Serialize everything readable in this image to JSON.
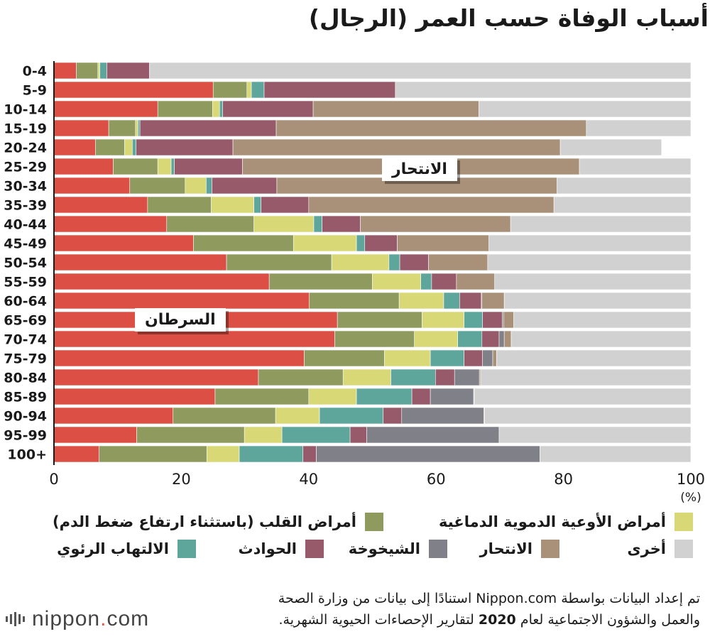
{
  "title": "أسباب الوفاة حسب العمر (الرجال)",
  "colors": {
    "cancer": "#db4f44",
    "heart": "#8f9a5e",
    "cerebro": "#d8d877",
    "pneumonia": "#5ea59c",
    "accident": "#965a6a",
    "senility": "#808089",
    "suicide": "#a89178",
    "other": "#d1d1d1"
  },
  "callouts": {
    "cancer": "السرطان",
    "suicide": "الانتحار"
  },
  "legend": [
    {
      "key": "cerebro",
      "label": "أمراض الأوعية الدموية الدماغية"
    },
    {
      "key": "heart",
      "label": "أمراض القلب (باستثناء ارتفاع ضغط الدم)"
    },
    {
      "key": "other",
      "label": "أخرى"
    },
    {
      "key": "suicide",
      "label": "الانتحار"
    },
    {
      "key": "senility",
      "label": "الشيخوخة"
    },
    {
      "key": "accident",
      "label": "الحوادث"
    },
    {
      "key": "pneumonia",
      "label": "الالتهاب الرئوي"
    }
  ],
  "source": {
    "line1_prefix": "تم إعداد البيانات بواسطة",
    "brand": "Nippon.com",
    "line1_suffix": "استنادًا إلى بيانات من وزارة الصحة",
    "line2_prefix": "والعمل والشؤون الاجتماعية لعام",
    "year": "2020",
    "line2_suffix": "لتقارير الإحصاءات الحيوية الشهرية."
  },
  "logo": {
    "name": "nippon",
    "dot": ".",
    "tld": "com"
  },
  "chart_data": {
    "type": "bar",
    "orientation": "horizontal",
    "stacked": true,
    "title": "أسباب الوفاة حسب العمر (الرجال)",
    "unit_label": "(%)",
    "xlim": [
      0,
      100
    ],
    "xticks": [
      0,
      20,
      40,
      60,
      80,
      100
    ],
    "categories": [
      "0-4",
      "5-9",
      "10-14",
      "15-19",
      "20-24",
      "25-29",
      "30-34",
      "35-39",
      "40-44",
      "45-49",
      "50-54",
      "55-59",
      "60-64",
      "65-69",
      "70-74",
      "75-79",
      "80-84",
      "85-89",
      "90-94",
      "95-99",
      "100+"
    ],
    "series": [
      {
        "key": "cancer",
        "name": "السرطان",
        "values": [
          3.5,
          25,
          16.3,
          8.6,
          6.5,
          9.3,
          11.9,
          14.7,
          17.7,
          21.9,
          27.1,
          33.8,
          40.1,
          44.5,
          44.1,
          39.3,
          32.1,
          25.3,
          18.7,
          13,
          7.1
        ]
      },
      {
        "key": "heart",
        "name": "أمراض القلب (باستثناء ارتفاع ضغط الدم)",
        "values": [
          3.4,
          5.3,
          8.6,
          4.2,
          4.6,
          7,
          8.7,
          10,
          13.7,
          15.7,
          16.5,
          16.2,
          14.1,
          13.3,
          12.5,
          12.6,
          13.3,
          14.7,
          16.1,
          16.9,
          16.9
        ]
      },
      {
        "key": "cerebro",
        "name": "أمراض الأوعية الدموية الدماغية",
        "values": [
          0.3,
          0.7,
          1.1,
          0.4,
          1.2,
          2.1,
          3.3,
          6.7,
          9.4,
          9.9,
          9,
          7.6,
          7,
          6.6,
          6.8,
          7.2,
          7.5,
          7.5,
          6.9,
          5.9,
          5.1
        ]
      },
      {
        "key": "pneumonia",
        "name": "الالتهاب الرئوي",
        "values": [
          1.1,
          2,
          0.5,
          0.3,
          0.6,
          0.5,
          0.9,
          1.1,
          1.3,
          1.3,
          1.7,
          1.7,
          2.5,
          2.9,
          3.8,
          5.3,
          7,
          8.7,
          10,
          10.7,
          10
        ]
      },
      {
        "key": "accident",
        "name": "الحوادث",
        "values": [
          6.7,
          20.6,
          14.2,
          21.4,
          15.2,
          10.7,
          10.2,
          7.5,
          6,
          5.1,
          4.5,
          3.9,
          3.4,
          3.1,
          2.7,
          2.9,
          3,
          2.9,
          2.9,
          2.6,
          2.1
        ]
      },
      {
        "key": "senility",
        "name": "الشيخوخة",
        "values": [
          0,
          0,
          0,
          0,
          0,
          0,
          0,
          0,
          0,
          0,
          0,
          0,
          0.1,
          0.2,
          0.8,
          1.6,
          3.9,
          6.8,
          12.9,
          20.8,
          35.1
        ]
      },
      {
        "key": "suicide",
        "name": "الانتحار",
        "values": [
          0,
          0,
          26,
          48.7,
          51.4,
          52.9,
          44,
          38.5,
          23.6,
          14.4,
          9.3,
          6,
          3.5,
          1.6,
          1.1,
          0.6,
          0.2,
          0.1,
          0.1,
          0,
          0
        ]
      },
      {
        "key": "other",
        "name": "أخرى",
        "values": [
          85,
          46.4,
          33.3,
          16.4,
          15.9,
          17.5,
          21,
          21.5,
          28.3,
          31.7,
          31.9,
          30.8,
          29.3,
          27.8,
          28.2,
          30.5,
          33,
          34,
          32.4,
          30.1,
          23.7
        ]
      }
    ]
  }
}
